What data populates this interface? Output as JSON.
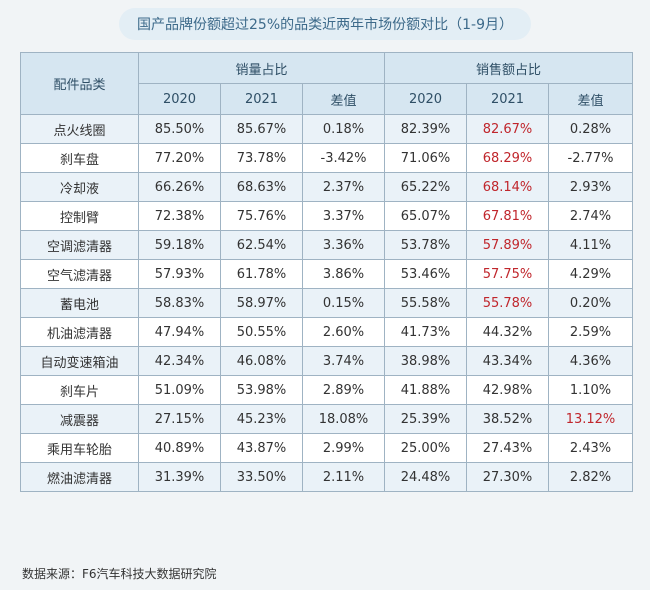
{
  "title": "国产品牌份额超过25%的品类近两年市场份额对比（1-9月）",
  "headers": {
    "category": "配件品类",
    "volume_share": "销量占比",
    "sales_share": "销售额占比",
    "y2020": "2020",
    "y2021": "2021",
    "diff": "差值"
  },
  "rows": [
    {
      "name": "点火线圈",
      "v2020": "85.50%",
      "v2021": "85.67%",
      "vdiff": "0.18%",
      "s2020": "82.39%",
      "s2021": "82.67%",
      "sdiff": "0.28%"
    },
    {
      "name": "刹车盘",
      "v2020": "77.20%",
      "v2021": "73.78%",
      "vdiff": "-3.42%",
      "s2020": "71.06%",
      "s2021": "68.29%",
      "sdiff": "-2.77%"
    },
    {
      "name": "冷却液",
      "v2020": "66.26%",
      "v2021": "68.63%",
      "vdiff": "2.37%",
      "s2020": "65.22%",
      "s2021": "68.14%",
      "sdiff": "2.93%"
    },
    {
      "name": "控制臂",
      "v2020": "72.38%",
      "v2021": "75.76%",
      "vdiff": "3.37%",
      "s2020": "65.07%",
      "s2021": "67.81%",
      "sdiff": "2.74%"
    },
    {
      "name": "空调滤清器",
      "v2020": "59.18%",
      "v2021": "62.54%",
      "vdiff": "3.36%",
      "s2020": "53.78%",
      "s2021": "57.89%",
      "sdiff": "4.11%"
    },
    {
      "name": "空气滤清器",
      "v2020": "57.93%",
      "v2021": "61.78%",
      "vdiff": "3.86%",
      "s2020": "53.46%",
      "s2021": "57.75%",
      "sdiff": "4.29%"
    },
    {
      "name": "蓄电池",
      "v2020": "58.83%",
      "v2021": "58.97%",
      "vdiff": "0.15%",
      "s2020": "55.58%",
      "s2021": "55.78%",
      "sdiff": "0.20%"
    },
    {
      "name": "机油滤清器",
      "v2020": "47.94%",
      "v2021": "50.55%",
      "vdiff": "2.60%",
      "s2020": "41.73%",
      "s2021": "44.32%",
      "sdiff": "2.59%"
    },
    {
      "name": "自动变速箱油",
      "v2020": "42.34%",
      "v2021": "46.08%",
      "vdiff": "3.74%",
      "s2020": "38.98%",
      "s2021": "43.34%",
      "sdiff": "4.36%"
    },
    {
      "name": "刹车片",
      "v2020": "51.09%",
      "v2021": "53.98%",
      "vdiff": "2.89%",
      "s2020": "41.88%",
      "s2021": "42.98%",
      "sdiff": "1.10%"
    },
    {
      "name": "减震器",
      "v2020": "27.15%",
      "v2021": "45.23%",
      "vdiff": "18.08%",
      "s2020": "25.39%",
      "s2021": "38.52%",
      "sdiff": "13.12%"
    },
    {
      "name": "乘用车轮胎",
      "v2020": "40.89%",
      "v2021": "43.87%",
      "vdiff": "2.99%",
      "s2020": "25.00%",
      "s2021": "27.43%",
      "sdiff": "2.43%"
    },
    {
      "name": "燃油滤清器",
      "v2020": "31.39%",
      "v2021": "33.50%",
      "vdiff": "2.11%",
      "s2020": "24.48%",
      "s2021": "27.30%",
      "sdiff": "2.82%"
    }
  ],
  "source": "数据来源：F6汽车科技大数据研究院",
  "colors": {
    "highlight": "#c0262c",
    "header_bg": "#d6e6f1",
    "stripe": "#eaf2f8",
    "border": "#9fb3c3"
  }
}
